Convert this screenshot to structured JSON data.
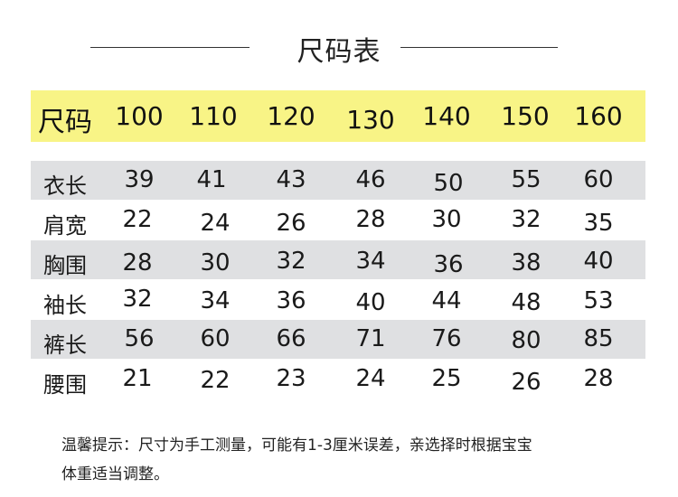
{
  "title": "尺码表",
  "header": {
    "label": "尺码",
    "sizes": [
      "100",
      "110",
      "120",
      "130",
      "140",
      "150",
      "160"
    ]
  },
  "rows": [
    {
      "label": "衣长",
      "values": [
        "39",
        "41",
        "43",
        "46",
        "50",
        "55",
        "60"
      ]
    },
    {
      "label": "肩宽",
      "values": [
        "22",
        "24",
        "26",
        "28",
        "30",
        "32",
        "35"
      ]
    },
    {
      "label": "胸围",
      "values": [
        "28",
        "30",
        "32",
        "34",
        "36",
        "38",
        "40"
      ]
    },
    {
      "label": "袖长",
      "values": [
        "32",
        "34",
        "36",
        "40",
        "44",
        "48",
        "53"
      ]
    },
    {
      "label": "裤长",
      "values": [
        "56",
        "60",
        "66",
        "71",
        "76",
        "80",
        "85"
      ]
    },
    {
      "label": "腰围",
      "values": [
        "21",
        "22",
        "23",
        "24",
        "25",
        "26",
        "28"
      ]
    }
  ],
  "note_line1": "温馨提示：尺寸为手工测量，可能有1-3厘米误差，亲选择时根据宝宝",
  "note_line2": "体重适当调整。",
  "colors": {
    "header_band": "#f8f486",
    "row_shade": "#dfe0e2"
  }
}
